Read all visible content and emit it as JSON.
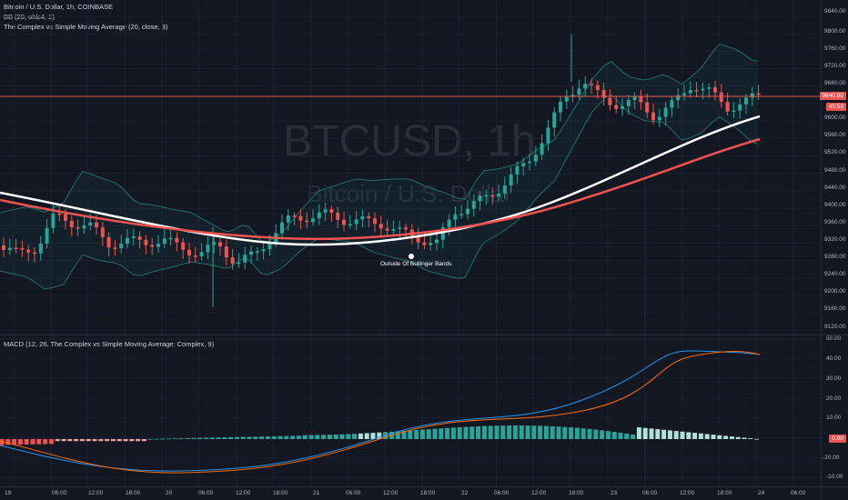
{
  "legend": {
    "symbol": "Bitcoin / U.S. Dollar, 1h, COINBASE",
    "bb": "BB (20, ohlc4, 2)",
    "sma": "The Complex vs Simple Moving Average (20, close, 3)",
    "macd": "MACD (12, 26, The Complex vs Simple Moving Average: Complex, 9)"
  },
  "watermark": {
    "ticker": "BTCUSD, 1h",
    "name": "Bitcoin / U.S. Dollar"
  },
  "annotation": "Outside Of Bollinger Bands",
  "price_axis": [
    "9840.00",
    "9800.00",
    "9760.00",
    "9720.00",
    "9680.00",
    "9600.00",
    "9560.00",
    "9520.00",
    "9480.00",
    "9440.00",
    "9400.00",
    "9360.00",
    "9320.00",
    "9280.00",
    "9240.00",
    "9200.00",
    "9160.00",
    "9120.00"
  ],
  "current_price": "9640.00",
  "countdown": "45:53",
  "macd_axis": [
    "50.00",
    "40.00",
    "30.00",
    "20.00",
    "10.00",
    "0.00",
    "-10.00",
    "-20.00"
  ],
  "macd_zero_tag": "0.00",
  "time_axis": [
    "19",
    "06:00",
    "12:00",
    "18:00",
    "20",
    "06:00",
    "12:00",
    "18:00",
    "21",
    "06:00",
    "12:00",
    "18:00",
    "22",
    "06:00",
    "12:00",
    "18:00",
    "23",
    "06:00",
    "12:00",
    "18:00",
    "24",
    "06:00"
  ],
  "colors": {
    "up": "#26a69a",
    "down": "#ef5350",
    "bg": "#131722",
    "ma_white": "#ffffff",
    "ma_red": "#ef5350",
    "macd_line": "#2196f3",
    "signal_line": "#ff6d00"
  }
}
